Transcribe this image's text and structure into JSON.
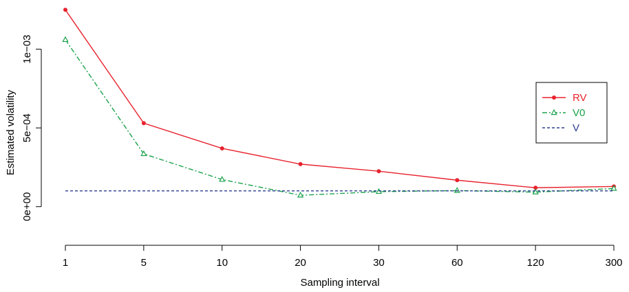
{
  "chart_data": {
    "type": "line",
    "title": "",
    "xlabel": "Sampling interval",
    "ylabel": "Estimated volatility",
    "categories": [
      "1",
      "5",
      "10",
      "20",
      "30",
      "60",
      "120",
      "300"
    ],
    "y_ticks": [
      "0e+00",
      "5e−04",
      "1e−03"
    ],
    "ylim": [
      -0.00018,
      0.00126
    ],
    "grid": false,
    "legend_position": "right",
    "series": [
      {
        "name": "RV",
        "color": "#e8222d",
        "line_style": "solid",
        "marker": "circle",
        "values": [
          0.00125,
          0.00053,
          0.00037,
          0.00027,
          0.000225,
          0.000168,
          0.00012,
          0.000128
        ]
      },
      {
        "name": "V0",
        "color": "#1aa24a",
        "line_style": "dashdot",
        "marker": "triangle",
        "values": [
          0.00106,
          0.000335,
          0.000172,
          7.2e-05,
          9.5e-05,
          0.000102,
          9.2e-05,
          0.000115
        ]
      },
      {
        "name": "V",
        "color": "#2a3c8f",
        "line_style": "dashed",
        "marker": "none",
        "values": [
          0.0001,
          0.0001,
          0.0001,
          0.0001,
          0.0001,
          0.0001,
          0.0001,
          0.0001
        ]
      }
    ]
  }
}
